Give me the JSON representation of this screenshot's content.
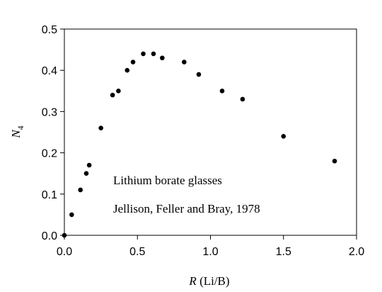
{
  "chart_data": {
    "type": "scatter",
    "title": "",
    "xlabel": {
      "italic": "R",
      "rest": " (Li/B)"
    },
    "ylabel": {
      "main": "N",
      "subscript": "4"
    },
    "xlim": [
      0,
      2.0
    ],
    "ylim": [
      0,
      0.5
    ],
    "xticks": [
      "0.0",
      "0.5",
      "1.0",
      "1.5",
      "2.0"
    ],
    "yticks": [
      "0.0",
      "0.1",
      "0.2",
      "0.3",
      "0.4",
      "0.5"
    ],
    "grid": false,
    "legend": "none",
    "marker_color": "#000000",
    "series": [
      {
        "x": [
          0.0,
          0.05,
          0.11,
          0.15,
          0.17,
          0.25,
          0.33,
          0.37,
          0.43,
          0.47,
          0.54,
          0.61,
          0.67,
          0.82,
          0.92,
          1.08,
          1.22,
          1.5,
          1.85
        ],
        "y": [
          0.0,
          0.05,
          0.11,
          0.15,
          0.17,
          0.26,
          0.34,
          0.35,
          0.4,
          0.42,
          0.44,
          0.44,
          0.43,
          0.42,
          0.39,
          0.35,
          0.33,
          0.24,
          0.18
        ]
      }
    ],
    "annotations": {
      "line1": "Lithium borate glasses",
      "line2": "Jellison, Feller and Bray, 1978"
    }
  }
}
